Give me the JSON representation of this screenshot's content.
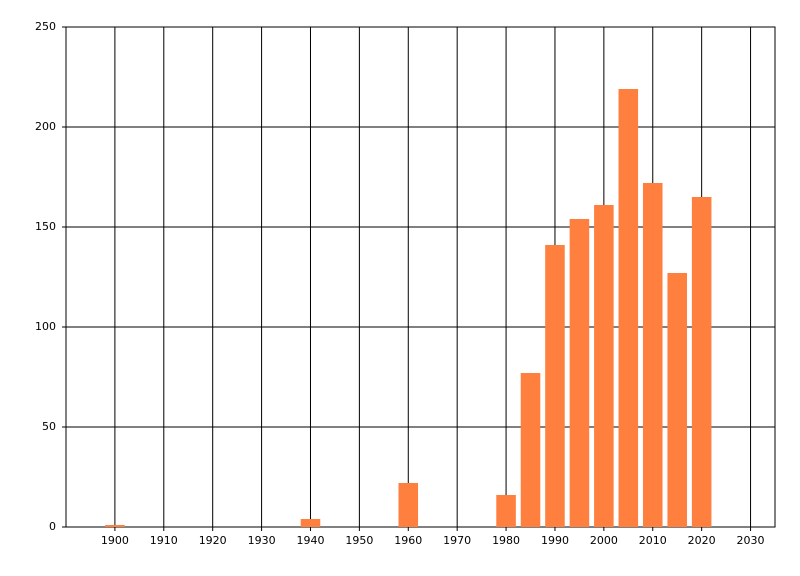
{
  "chart_data": {
    "type": "bar",
    "x": [
      1900,
      1940,
      1960,
      1980,
      1985,
      1990,
      1995,
      2000,
      2005,
      2010,
      2015,
      2020
    ],
    "values": [
      1,
      4,
      22,
      16,
      77,
      141,
      154,
      161,
      219,
      172,
      127,
      165
    ],
    "color": "#ff7f3f",
    "xlim": [
      1890,
      2035
    ],
    "xticks": [
      1900,
      1910,
      1920,
      1930,
      1940,
      1950,
      1960,
      1970,
      1980,
      1990,
      2000,
      2010,
      2020,
      2030
    ],
    "ylim": [
      0,
      250
    ],
    "yticks": [
      0,
      50,
      100,
      150,
      200,
      250
    ],
    "grid": true
  }
}
